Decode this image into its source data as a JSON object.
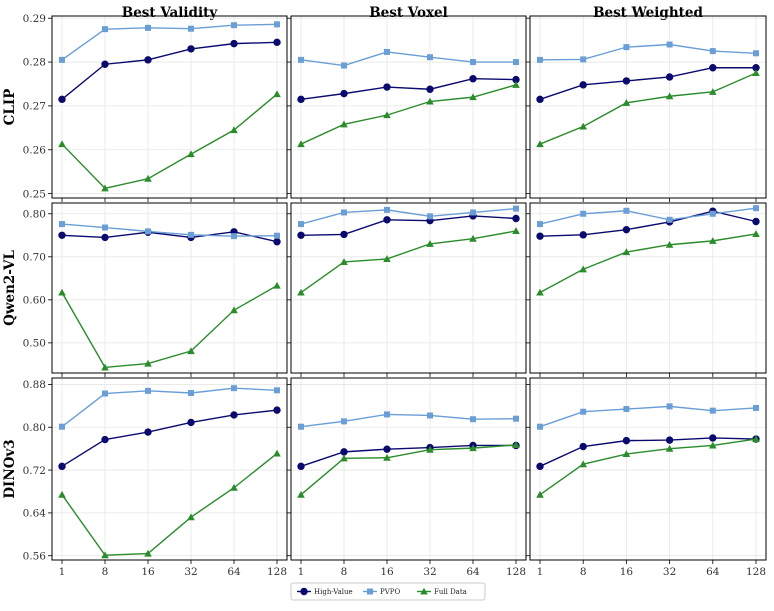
{
  "chart_data": {
    "type": "line",
    "x_ticks": [
      "1",
      "8",
      "16",
      "32",
      "64",
      "128"
    ],
    "columns": [
      "Best Validity",
      "Best Voxel",
      "Best Weighted"
    ],
    "rows": [
      {
        "label": "CLIP",
        "ylim": [
          0.249,
          0.2905
        ],
        "yticks": [
          "0.25",
          "0.26",
          "0.27",
          "0.28",
          "0.29"
        ],
        "ytick_values": [
          0.25,
          0.26,
          0.27,
          0.28,
          0.29
        ]
      },
      {
        "label": "Qwen2-VL",
        "ylim": [
          0.43,
          0.825
        ],
        "yticks": [
          "0.50",
          "0.60",
          "0.70",
          "0.80"
        ],
        "ytick_values": [
          0.5,
          0.6,
          0.7,
          0.8
        ]
      },
      {
        "label": "DINOv3",
        "ylim": [
          0.552,
          0.892
        ],
        "yticks": [
          "0.56",
          "0.64",
          "0.72",
          "0.80",
          "0.88"
        ],
        "ytick_values": [
          0.56,
          0.64,
          0.72,
          0.8,
          0.88
        ]
      }
    ],
    "series_styles": [
      {
        "name": "High-Value",
        "color": "#0a0a6e",
        "marker": "circle"
      },
      {
        "name": "PVPO",
        "color": "#6a9ed6",
        "marker": "square"
      },
      {
        "name": "Full Data",
        "color": "#2a8c2a",
        "marker": "triangle"
      }
    ],
    "panels": [
      [
        {
          "series": [
            {
              "name": "High-Value",
              "values": [
                0.2715,
                0.2795,
                0.2805,
                0.283,
                0.2842,
                0.2845
              ]
            },
            {
              "name": "PVPO",
              "values": [
                0.2805,
                0.2875,
                0.2878,
                0.2876,
                0.2884,
                0.2886
              ]
            },
            {
              "name": "Full Data",
              "values": [
                0.2613,
                0.2512,
                0.2534,
                0.259,
                0.2645,
                0.2727
              ]
            }
          ]
        },
        {
          "series": [
            {
              "name": "High-Value",
              "values": [
                0.2715,
                0.2728,
                0.2743,
                0.2738,
                0.2762,
                0.276
              ]
            },
            {
              "name": "PVPO",
              "values": [
                0.2805,
                0.2792,
                0.2823,
                0.2811,
                0.28,
                0.28
              ]
            },
            {
              "name": "Full Data",
              "values": [
                0.2613,
                0.2658,
                0.2679,
                0.271,
                0.272,
                0.2748
              ]
            }
          ]
        },
        {
          "series": [
            {
              "name": "High-Value",
              "values": [
                0.2715,
                0.2748,
                0.2757,
                0.2766,
                0.2787,
                0.2787
              ]
            },
            {
              "name": "PVPO",
              "values": [
                0.2805,
                0.2806,
                0.2834,
                0.284,
                0.2825,
                0.282
              ]
            },
            {
              "name": "Full Data",
              "values": [
                0.2613,
                0.2653,
                0.2707,
                0.2722,
                0.2732,
                0.2775
              ]
            }
          ]
        }
      ],
      [
        {
          "series": [
            {
              "name": "High-Value",
              "values": [
                0.75,
                0.745,
                0.757,
                0.745,
                0.758,
                0.735
              ]
            },
            {
              "name": "PVPO",
              "values": [
                0.776,
                0.768,
                0.759,
                0.751,
                0.748,
                0.749
              ]
            },
            {
              "name": "Full Data",
              "values": [
                0.617,
                0.443,
                0.452,
                0.481,
                0.576,
                0.633
              ]
            }
          ]
        },
        {
          "series": [
            {
              "name": "High-Value",
              "values": [
                0.75,
                0.752,
                0.786,
                0.784,
                0.795,
                0.789
              ]
            },
            {
              "name": "PVPO",
              "values": [
                0.776,
                0.803,
                0.809,
                0.794,
                0.803,
                0.812
              ]
            },
            {
              "name": "Full Data",
              "values": [
                0.617,
                0.688,
                0.695,
                0.73,
                0.742,
                0.76
              ]
            }
          ]
        },
        {
          "series": [
            {
              "name": "High-Value",
              "values": [
                0.748,
                0.751,
                0.763,
                0.781,
                0.806,
                0.782
              ]
            },
            {
              "name": "PVPO",
              "values": [
                0.776,
                0.8,
                0.807,
                0.786,
                0.8,
                0.813
              ]
            },
            {
              "name": "Full Data",
              "values": [
                0.617,
                0.671,
                0.711,
                0.728,
                0.737,
                0.753
              ]
            }
          ]
        }
      ],
      [
        {
          "series": [
            {
              "name": "High-Value",
              "values": [
                0.727,
                0.777,
                0.791,
                0.809,
                0.823,
                0.832
              ]
            },
            {
              "name": "PVPO",
              "values": [
                0.801,
                0.863,
                0.868,
                0.864,
                0.873,
                0.869
              ]
            },
            {
              "name": "Full Data",
              "values": [
                0.674,
                0.561,
                0.564,
                0.632,
                0.687,
                0.751
              ]
            }
          ]
        },
        {
          "series": [
            {
              "name": "High-Value",
              "values": [
                0.727,
                0.754,
                0.759,
                0.762,
                0.766,
                0.766
              ]
            },
            {
              "name": "PVPO",
              "values": [
                0.801,
                0.811,
                0.824,
                0.822,
                0.815,
                0.816
              ]
            },
            {
              "name": "Full Data",
              "values": [
                0.674,
                0.742,
                0.743,
                0.758,
                0.761,
                0.767
              ]
            }
          ]
        },
        {
          "series": [
            {
              "name": "High-Value",
              "values": [
                0.727,
                0.764,
                0.775,
                0.776,
                0.78,
                0.778
              ]
            },
            {
              "name": "PVPO",
              "values": [
                0.801,
                0.829,
                0.834,
                0.839,
                0.831,
                0.836
              ]
            },
            {
              "name": "Full Data",
              "values": [
                0.674,
                0.731,
                0.75,
                0.76,
                0.766,
                0.778
              ]
            }
          ]
        }
      ]
    ],
    "grid": true,
    "legend_position": "bottom-center"
  }
}
